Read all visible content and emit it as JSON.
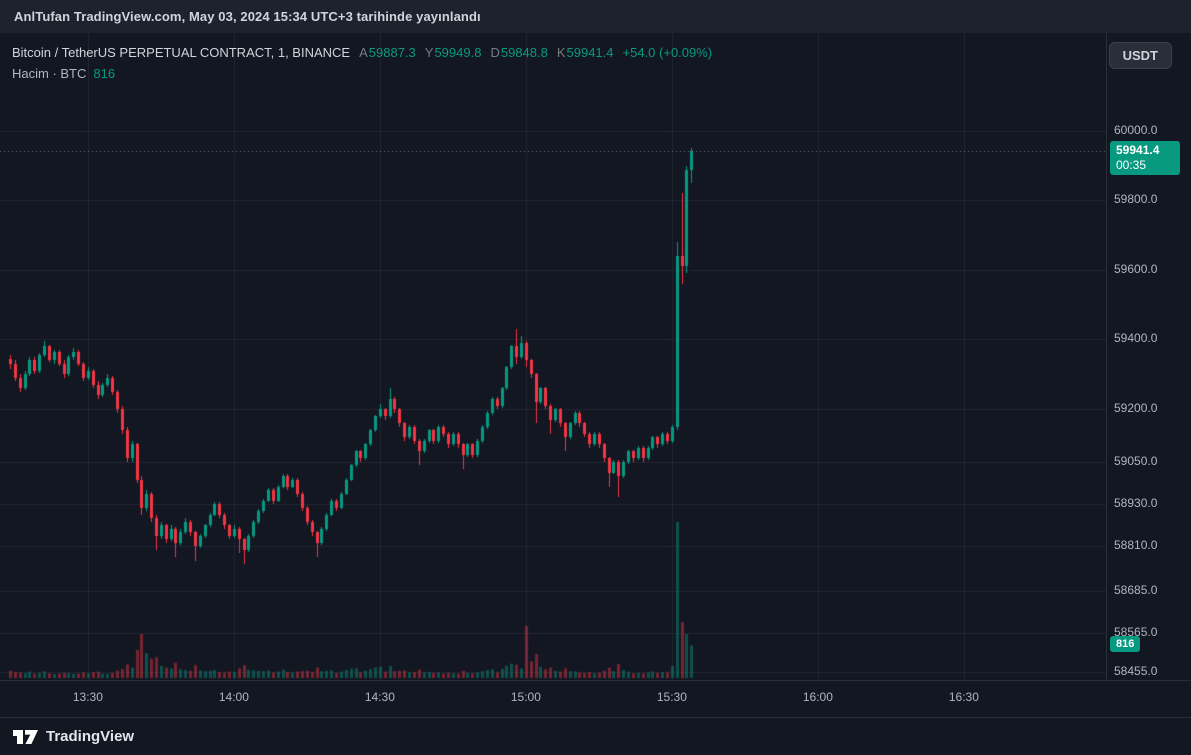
{
  "topbar": {
    "publish_text": "AnlTufan TradingView.com, May 03, 2024 15:34 UTC+3 tarihinde yayınlandı"
  },
  "legend": {
    "symbol_title": "Bitcoin / TetherUS PERPETUAL CONTRACT, 1, BINANCE",
    "ohlc": [
      {
        "label": "A",
        "value": "59887.3"
      },
      {
        "label": "Y",
        "value": "59949.8"
      },
      {
        "label": "D",
        "value": "59848.8"
      },
      {
        "label": "K",
        "value": "59941.4"
      }
    ],
    "change": "+54.0 (+0.09%)",
    "volume_label": "Hacim · BTC",
    "volume_value": "816"
  },
  "currency_button": {
    "label": "USDT"
  },
  "price_axis": {
    "price_badge": {
      "price": "59941.4",
      "countdown": "00:35"
    },
    "volume_badge": "816"
  },
  "footer": {
    "brand": "TradingView"
  },
  "colors": {
    "page_bg": "#131722",
    "topbar_bg": "#1e222d",
    "border": "#2a2e39",
    "grid": "rgba(42,46,57,0.65)",
    "up": "#089981",
    "down": "#f23645",
    "vol_up": "rgba(8,153,129,0.45)",
    "vol_down": "rgba(242,54,69,0.45)",
    "price_line": "rgba(178,181,190,0.6)",
    "text": "#d1d4dc",
    "muted": "#787b86",
    "axis_text": "#b2b5be",
    "badge_green": "#089981"
  },
  "chart_data": {
    "type": "candlestick",
    "title": "Bitcoin / TetherUS PERPETUAL CONTRACT, 1, BINANCE",
    "interval": "1",
    "price_scale": "log",
    "legend_position": "top-left",
    "grid": true,
    "y_axis_ticks": [
      60000,
      59800,
      59600,
      59400,
      59200,
      59050,
      58930,
      58810,
      58685,
      58565,
      58455
    ],
    "x_axis_ticks": [
      "13:30",
      "14:00",
      "14:30",
      "15:00",
      "15:30",
      "16:00",
      "16:30"
    ],
    "start_time": "13:14",
    "interval_minutes": 1,
    "last_price": 59941.4,
    "last_bar": {
      "open": 59887.3,
      "high": 59949.8,
      "low": 59848.8,
      "close": 59941.4,
      "volume": 816
    },
    "columns": [
      "open",
      "high",
      "low",
      "close",
      "volume"
    ],
    "candles": [
      [
        59345,
        59355,
        59315,
        59330,
        180
      ],
      [
        59330,
        59340,
        59280,
        59290,
        150
      ],
      [
        59290,
        59300,
        59250,
        59260,
        140
      ],
      [
        59260,
        59310,
        59255,
        59300,
        120
      ],
      [
        59300,
        59350,
        59295,
        59340,
        160
      ],
      [
        59340,
        59350,
        59300,
        59310,
        110
      ],
      [
        59310,
        59360,
        59305,
        59355,
        130
      ],
      [
        59355,
        59395,
        59350,
        59380,
        170
      ],
      [
        59380,
        59385,
        59335,
        59340,
        120
      ],
      [
        59340,
        59370,
        59330,
        59365,
        100
      ],
      [
        59365,
        59370,
        59325,
        59330,
        110
      ],
      [
        59330,
        59340,
        59290,
        59300,
        130
      ],
      [
        59300,
        59355,
        59295,
        59350,
        120
      ],
      [
        59350,
        59375,
        59340,
        59365,
        100
      ],
      [
        59365,
        59370,
        59325,
        59330,
        110
      ],
      [
        59330,
        59335,
        59280,
        59290,
        140
      ],
      [
        59290,
        59320,
        59285,
        59310,
        120
      ],
      [
        59310,
        59315,
        59260,
        59270,
        150
      ],
      [
        59270,
        59280,
        59230,
        59240,
        160
      ],
      [
        59240,
        59275,
        59235,
        59270,
        110
      ],
      [
        59270,
        59300,
        59265,
        59290,
        100
      ],
      [
        59290,
        59295,
        59240,
        59250,
        130
      ],
      [
        59250,
        59255,
        59190,
        59200,
        180
      ],
      [
        59200,
        59210,
        59130,
        59140,
        220
      ],
      [
        59140,
        59150,
        59050,
        59060,
        340
      ],
      [
        59060,
        59110,
        59050,
        59100,
        260
      ],
      [
        59100,
        59105,
        58990,
        59000,
        700
      ],
      [
        59000,
        59010,
        58900,
        58920,
        1100
      ],
      [
        58920,
        58970,
        58910,
        58960,
        620
      ],
      [
        58960,
        58965,
        58880,
        58890,
        480
      ],
      [
        58890,
        58900,
        58800,
        58840,
        520
      ],
      [
        58840,
        58880,
        58830,
        58870,
        300
      ],
      [
        58870,
        58875,
        58820,
        58830,
        260
      ],
      [
        58830,
        58870,
        58825,
        58860,
        240
      ],
      [
        58860,
        58865,
        58780,
        58820,
        380
      ],
      [
        58820,
        58860,
        58815,
        58850,
        220
      ],
      [
        58850,
        58890,
        58845,
        58880,
        200
      ],
      [
        58880,
        58885,
        58840,
        58850,
        180
      ],
      [
        58850,
        58855,
        58770,
        58810,
        320
      ],
      [
        58810,
        58845,
        58805,
        58840,
        190
      ],
      [
        58840,
        58875,
        58835,
        58870,
        170
      ],
      [
        58870,
        58905,
        58865,
        58900,
        180
      ],
      [
        58900,
        58935,
        58895,
        58930,
        200
      ],
      [
        58930,
        58935,
        58890,
        58900,
        150
      ],
      [
        58900,
        58905,
        58860,
        58870,
        140
      ],
      [
        58870,
        58875,
        58830,
        58840,
        160
      ],
      [
        58840,
        58870,
        58835,
        58860,
        150
      ],
      [
        58860,
        58865,
        58790,
        58830,
        240
      ],
      [
        58830,
        58835,
        58760,
        58800,
        320
      ],
      [
        58800,
        58845,
        58795,
        58840,
        210
      ],
      [
        58840,
        58885,
        58835,
        58880,
        190
      ],
      [
        58880,
        58915,
        58875,
        58910,
        180
      ],
      [
        58910,
        58945,
        58905,
        58940,
        170
      ],
      [
        58940,
        58975,
        58935,
        58970,
        190
      ],
      [
        58970,
        58975,
        58930,
        58940,
        140
      ],
      [
        58940,
        58985,
        58935,
        58980,
        160
      ],
      [
        58980,
        59015,
        58975,
        59010,
        210
      ],
      [
        59010,
        59015,
        58970,
        58980,
        150
      ],
      [
        58980,
        59005,
        58975,
        59000,
        140
      ],
      [
        59000,
        59005,
        58950,
        58960,
        160
      ],
      [
        58960,
        58965,
        58910,
        58920,
        170
      ],
      [
        58920,
        58925,
        58870,
        58880,
        180
      ],
      [
        58880,
        58885,
        58840,
        58850,
        150
      ],
      [
        58850,
        58855,
        58780,
        58820,
        260
      ],
      [
        58820,
        58865,
        58815,
        58860,
        170
      ],
      [
        58860,
        58905,
        58855,
        58900,
        180
      ],
      [
        58900,
        58945,
        58895,
        58940,
        190
      ],
      [
        58940,
        58945,
        58910,
        58920,
        130
      ],
      [
        58920,
        58965,
        58915,
        58960,
        160
      ],
      [
        58960,
        59005,
        58955,
        59000,
        200
      ],
      [
        59000,
        59045,
        58995,
        59040,
        230
      ],
      [
        59040,
        59085,
        59035,
        59080,
        240
      ],
      [
        59080,
        59085,
        59050,
        59060,
        150
      ],
      [
        59060,
        59105,
        59055,
        59100,
        180
      ],
      [
        59100,
        59145,
        59095,
        59140,
        220
      ],
      [
        59140,
        59185,
        59135,
        59180,
        260
      ],
      [
        59180,
        59215,
        59175,
        59200,
        280
      ],
      [
        59200,
        59205,
        59170,
        59180,
        160
      ],
      [
        59180,
        59260,
        59175,
        59230,
        300
      ],
      [
        59230,
        59235,
        59190,
        59200,
        170
      ],
      [
        59200,
        59205,
        59150,
        59160,
        180
      ],
      [
        59160,
        59165,
        59110,
        59120,
        190
      ],
      [
        59120,
        59155,
        59115,
        59150,
        140
      ],
      [
        59150,
        59155,
        59100,
        59110,
        150
      ],
      [
        59110,
        59115,
        59040,
        59080,
        210
      ],
      [
        59080,
        59115,
        59075,
        59110,
        140
      ],
      [
        59110,
        59145,
        59105,
        59140,
        150
      ],
      [
        59140,
        59145,
        59100,
        59110,
        130
      ],
      [
        59110,
        59155,
        59105,
        59150,
        140
      ],
      [
        59150,
        59155,
        59120,
        59130,
        110
      ],
      [
        59130,
        59135,
        59090,
        59100,
        130
      ],
      [
        59100,
        59135,
        59095,
        59130,
        120
      ],
      [
        59130,
        59135,
        59090,
        59100,
        110
      ],
      [
        59100,
        59105,
        59030,
        59070,
        180
      ],
      [
        59070,
        59105,
        59065,
        59100,
        130
      ],
      [
        59100,
        59105,
        59060,
        59070,
        120
      ],
      [
        59070,
        59115,
        59065,
        59110,
        140
      ],
      [
        59110,
        59155,
        59105,
        59150,
        170
      ],
      [
        59150,
        59195,
        59145,
        59190,
        200
      ],
      [
        59190,
        59235,
        59185,
        59230,
        220
      ],
      [
        59230,
        59235,
        59200,
        59210,
        140
      ],
      [
        59210,
        59265,
        59205,
        59260,
        230
      ],
      [
        59260,
        59325,
        59255,
        59320,
        310
      ],
      [
        59320,
        59385,
        59315,
        59380,
        360
      ],
      [
        59380,
        59430,
        59330,
        59350,
        330
      ],
      [
        59350,
        59410,
        59345,
        59390,
        240
      ],
      [
        59390,
        59395,
        59320,
        59340,
        1300
      ],
      [
        59340,
        59345,
        59290,
        59300,
        420
      ],
      [
        59300,
        59305,
        59160,
        59220,
        600
      ],
      [
        59220,
        59265,
        59215,
        59260,
        280
      ],
      [
        59260,
        59265,
        59200,
        59210,
        220
      ],
      [
        59210,
        59215,
        59130,
        59170,
        260
      ],
      [
        59170,
        59205,
        59165,
        59200,
        180
      ],
      [
        59200,
        59205,
        59150,
        59160,
        160
      ],
      [
        59160,
        59165,
        59080,
        59120,
        240
      ],
      [
        59120,
        59165,
        59115,
        59160,
        170
      ],
      [
        59160,
        59195,
        59155,
        59190,
        160
      ],
      [
        59190,
        59195,
        59150,
        59160,
        140
      ],
      [
        59160,
        59165,
        59120,
        59130,
        130
      ],
      [
        59130,
        59135,
        59090,
        59100,
        150
      ],
      [
        59100,
        59135,
        59095,
        59130,
        120
      ],
      [
        59130,
        59135,
        59090,
        59100,
        130
      ],
      [
        59100,
        59105,
        59050,
        59060,
        180
      ],
      [
        59060,
        59065,
        58980,
        59020,
        260
      ],
      [
        59020,
        59055,
        59015,
        59050,
        170
      ],
      [
        59050,
        59055,
        58950,
        59010,
        350
      ],
      [
        59010,
        59055,
        59005,
        59050,
        200
      ],
      [
        59050,
        59085,
        59045,
        59080,
        160
      ],
      [
        59080,
        59085,
        59050,
        59060,
        120
      ],
      [
        59060,
        59095,
        59055,
        59090,
        130
      ],
      [
        59090,
        59095,
        59050,
        59060,
        120
      ],
      [
        59060,
        59095,
        59055,
        59090,
        140
      ],
      [
        59090,
        59125,
        59085,
        59120,
        160
      ],
      [
        59120,
        59125,
        59090,
        59100,
        130
      ],
      [
        59100,
        59135,
        59095,
        59130,
        150
      ],
      [
        59130,
        59135,
        59100,
        59110,
        140
      ],
      [
        59110,
        59155,
        59105,
        59150,
        300
      ],
      [
        59150,
        59680,
        59140,
        59640,
        3900
      ],
      [
        59640,
        59820,
        59560,
        59610,
        1400
      ],
      [
        59610,
        59900,
        59590,
        59887,
        1100
      ],
      [
        59887.3,
        59949.8,
        59848.8,
        59941.4,
        816
      ]
    ]
  }
}
